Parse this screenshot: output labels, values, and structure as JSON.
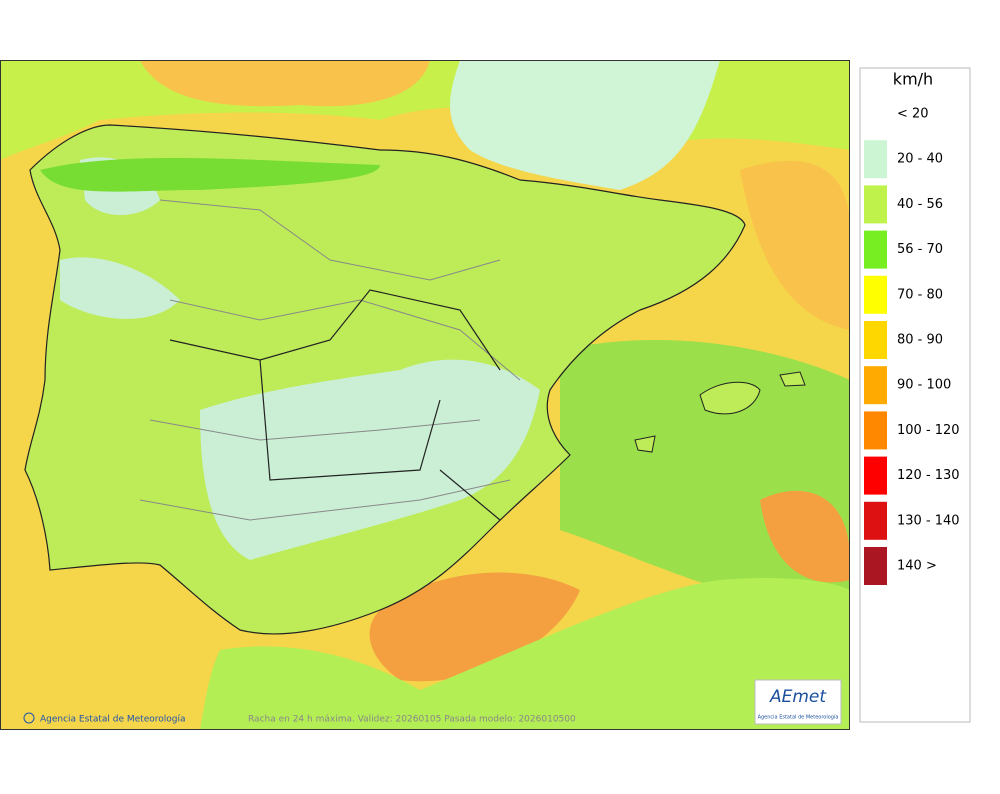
{
  "legend": {
    "title": "km/h",
    "items": [
      {
        "label": "< 20",
        "color": "#ffffff"
      },
      {
        "label": "20 - 40",
        "color": "#ccf5d3"
      },
      {
        "label": "40 - 56",
        "color": "#bff24a"
      },
      {
        "label": "56 - 70",
        "color": "#77ee22"
      },
      {
        "label": "70 - 80",
        "color": "#ffff00"
      },
      {
        "label": "80 - 90",
        "color": "#ffd700"
      },
      {
        "label": "90 - 100",
        "color": "#ffaa00"
      },
      {
        "label": "100 - 120",
        "color": "#ff8800"
      },
      {
        "label": "120 - 130",
        "color": "#ff0000"
      },
      {
        "label": "130 - 140",
        "color": "#dd1111"
      },
      {
        "label": "140 >",
        "color": "#aa1722"
      }
    ]
  },
  "footer": {
    "credit": "Agencia Estatal de Meteorología",
    "caption": "Racha en 24 h máxima. Validez: 20260105 Pasada modelo: 2026010500"
  },
  "logo": {
    "name": "AEmet",
    "subtitle": "Agencia Estatal de Meteorología"
  }
}
